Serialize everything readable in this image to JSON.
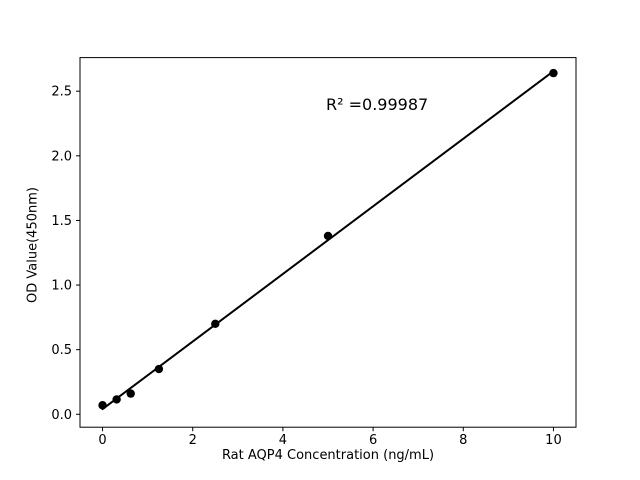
{
  "chart_data": {
    "type": "scatter",
    "title": "",
    "xlabel": "Rat AQP4 Concentration (ng/mL)",
    "ylabel": "OD Value(450nm)",
    "annotation": "R² =0.99987",
    "x": [
      0,
      0.3125,
      0.625,
      1.25,
      2.5,
      5,
      10
    ],
    "y": [
      0.07,
      0.115,
      0.16,
      0.35,
      0.7,
      1.38,
      2.64
    ],
    "fit_line": {
      "x": [
        0,
        10
      ],
      "y": [
        0.04,
        2.655
      ]
    },
    "xticks": [
      0,
      2,
      4,
      6,
      8,
      10
    ],
    "xtick_labels": [
      "0",
      "2",
      "4",
      "6",
      "8",
      "10"
    ],
    "yticks": [
      0.0,
      0.5,
      1.0,
      1.5,
      2.0,
      2.5
    ],
    "ytick_labels": [
      "0.0",
      "0.5",
      "1.0",
      "1.5",
      "2.0",
      "2.5"
    ],
    "xlim": [
      -0.5,
      10.5
    ],
    "ylim": [
      -0.1,
      2.76
    ],
    "grid": false,
    "legend": null,
    "marker_color": "#000000",
    "line_color": "#000000",
    "axis_color": "#000000",
    "background": "#ffffff"
  }
}
